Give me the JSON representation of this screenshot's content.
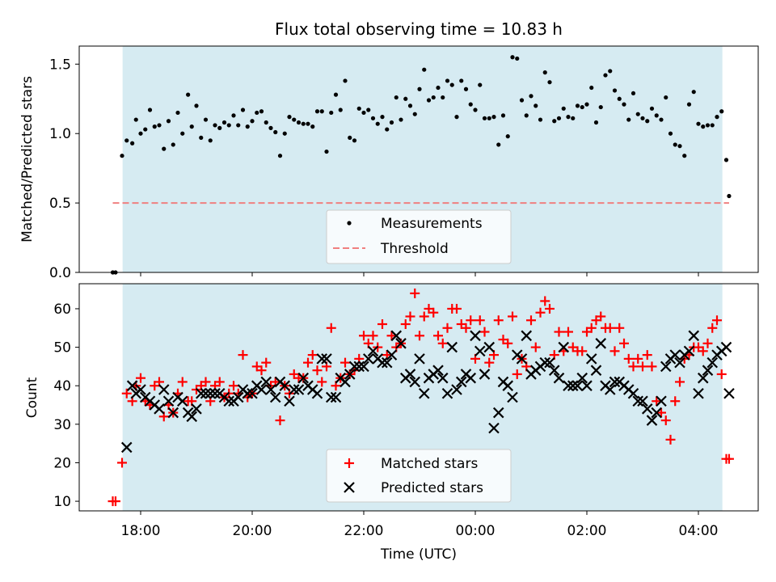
{
  "chart_data": [
    {
      "type": "scatter",
      "title": "Flux total observing time = 10.83 h",
      "xlabel": "",
      "ylabel": "Matched/Predicted stars",
      "ylim": [
        0,
        1.63
      ],
      "y_ticks": [
        "0.0",
        "0.5",
        "1.0",
        "1.5"
      ],
      "threshold": 0.5,
      "legend_position": "lower-center",
      "legend": [
        "Measurements",
        "Threshold"
      ],
      "colors": {
        "measurements": "#000000",
        "threshold": "#f08080",
        "span": "#add8e6"
      },
      "series": [
        {
          "name": "Measurements",
          "x": [
            "17:30",
            "17:33",
            "17:40",
            "17:45",
            "17:51",
            "17:55",
            "18:00",
            "18:05",
            "18:10",
            "18:15",
            "18:20",
            "18:25",
            "18:30",
            "18:35",
            "18:40",
            "18:45",
            "18:51",
            "18:55",
            "19:00",
            "19:05",
            "19:10",
            "19:15",
            "19:20",
            "19:25",
            "19:30",
            "19:35",
            "19:40",
            "19:45",
            "19:50",
            "19:55",
            "20:00",
            "20:05",
            "20:10",
            "20:15",
            "20:20",
            "20:25",
            "20:30",
            "20:35",
            "20:40",
            "20:45",
            "20:50",
            "20:55",
            "21:00",
            "21:05",
            "21:10",
            "21:15",
            "21:20",
            "21:25",
            "21:30",
            "21:35",
            "21:40",
            "21:45",
            "21:50",
            "21:55",
            "22:00",
            "22:05",
            "22:10",
            "22:15",
            "22:20",
            "22:25",
            "22:30",
            "22:35",
            "22:40",
            "22:45",
            "22:50",
            "22:55",
            "23:00",
            "23:05",
            "23:10",
            "23:15",
            "23:20",
            "23:25",
            "23:30",
            "23:35",
            "23:40",
            "23:45",
            "23:50",
            "23:55",
            "00:00",
            "00:05",
            "00:10",
            "00:15",
            "00:20",
            "00:25",
            "00:30",
            "00:35",
            "00:40",
            "00:45",
            "00:50",
            "00:55",
            "01:00",
            "01:05",
            "01:10",
            "01:15",
            "01:20",
            "01:25",
            "01:30",
            "01:35",
            "01:40",
            "01:45",
            "01:50",
            "01:55",
            "02:00",
            "02:05",
            "02:10",
            "02:15",
            "02:20",
            "02:25",
            "02:30",
            "02:35",
            "02:40",
            "02:45",
            "02:50",
            "02:55",
            "03:00",
            "03:05",
            "03:10",
            "03:15",
            "03:20",
            "03:25",
            "03:30",
            "03:35",
            "03:40",
            "03:45",
            "03:50",
            "03:55",
            "04:00",
            "04:05",
            "04:10",
            "04:15",
            "04:20",
            "04:25",
            "04:30",
            "04:33"
          ],
          "y": [
            0.0,
            0.0,
            0.84,
            0.95,
            0.93,
            1.1,
            1.0,
            1.03,
            1.17,
            1.05,
            1.06,
            0.89,
            1.09,
            0.92,
            1.15,
            1.0,
            1.28,
            1.05,
            1.2,
            0.97,
            1.1,
            0.95,
            1.06,
            1.04,
            1.08,
            1.06,
            1.13,
            1.06,
            1.17,
            1.05,
            1.09,
            1.15,
            1.16,
            1.08,
            1.04,
            1.01,
            0.84,
            1.0,
            1.12,
            1.1,
            1.08,
            1.07,
            1.07,
            1.05,
            1.16,
            1.16,
            0.87,
            1.15,
            1.28,
            1.17,
            1.38,
            0.97,
            0.95,
            1.18,
            1.15,
            1.17,
            1.11,
            1.07,
            1.12,
            1.03,
            1.08,
            1.26,
            1.1,
            1.25,
            1.2,
            1.14,
            1.32,
            1.46,
            1.24,
            1.26,
            1.33,
            1.26,
            1.38,
            1.35,
            1.12,
            1.38,
            1.32,
            1.21,
            1.17,
            1.35,
            1.11,
            1.11,
            1.12,
            0.92,
            1.13,
            0.98,
            1.55,
            1.54,
            1.24,
            1.13,
            1.27,
            1.2,
            1.1,
            1.44,
            1.37,
            1.09,
            1.11,
            1.18,
            1.12,
            1.11,
            1.2,
            1.19,
            1.21,
            1.33,
            1.08,
            1.19,
            1.42,
            1.45,
            1.31,
            1.25,
            1.21,
            1.1,
            1.29,
            1.14,
            1.11,
            1.09,
            1.18,
            1.13,
            1.1,
            1.26,
            1.0,
            0.92,
            0.91,
            0.84,
            1.21,
            1.3,
            1.07,
            1.05,
            1.06,
            1.06,
            1.12,
            1.16,
            0.81,
            0.55
          ]
        }
      ]
    },
    {
      "type": "scatter",
      "title": "",
      "xlabel": "Time (UTC)",
      "ylabel": "Count",
      "ylim": [
        7.5,
        66.5
      ],
      "x_ticks": [
        "18:00",
        "20:00",
        "22:00",
        "00:00",
        "02:00",
        "04:00"
      ],
      "y_ticks": [
        "10",
        "20",
        "30",
        "40",
        "50",
        "60"
      ],
      "legend_position": "lower-center",
      "legend": [
        "Matched stars",
        "Predicted stars"
      ],
      "colors": {
        "matched": "#ff0000",
        "predicted": "#000000",
        "span": "#add8e6"
      },
      "series": [
        {
          "name": "Matched stars",
          "x": [
            "17:30",
            "17:33",
            "17:40",
            "17:45",
            "17:51",
            "17:55",
            "18:00",
            "18:05",
            "18:10",
            "18:15",
            "18:20",
            "18:25",
            "18:30",
            "18:35",
            "18:40",
            "18:45",
            "18:51",
            "18:55",
            "19:00",
            "19:05",
            "19:10",
            "19:15",
            "19:20",
            "19:25",
            "19:30",
            "19:35",
            "19:40",
            "19:45",
            "19:50",
            "19:55",
            "20:00",
            "20:05",
            "20:10",
            "20:15",
            "20:20",
            "20:25",
            "20:30",
            "20:35",
            "20:40",
            "20:45",
            "20:50",
            "20:55",
            "21:00",
            "21:05",
            "21:10",
            "21:15",
            "21:20",
            "21:25",
            "21:30",
            "21:35",
            "21:40",
            "21:45",
            "21:50",
            "21:55",
            "22:00",
            "22:05",
            "22:10",
            "22:15",
            "22:20",
            "22:25",
            "22:30",
            "22:35",
            "22:40",
            "22:45",
            "22:50",
            "22:55",
            "23:00",
            "23:05",
            "23:10",
            "23:15",
            "23:20",
            "23:25",
            "23:30",
            "23:35",
            "23:40",
            "23:45",
            "23:50",
            "23:55",
            "00:00",
            "00:05",
            "00:10",
            "00:15",
            "00:20",
            "00:25",
            "00:30",
            "00:35",
            "00:40",
            "00:45",
            "00:50",
            "00:55",
            "01:00",
            "01:05",
            "01:10",
            "01:15",
            "01:20",
            "01:25",
            "01:30",
            "01:35",
            "01:40",
            "01:45",
            "01:50",
            "01:55",
            "02:00",
            "02:05",
            "02:10",
            "02:15",
            "02:20",
            "02:25",
            "02:30",
            "02:35",
            "02:40",
            "02:45",
            "02:50",
            "02:55",
            "03:00",
            "03:05",
            "03:10",
            "03:15",
            "03:20",
            "03:25",
            "03:30",
            "03:35",
            "03:40",
            "03:45",
            "03:50",
            "03:55",
            "04:00",
            "04:05",
            "04:10",
            "04:15",
            "04:20",
            "04:25",
            "04:30",
            "04:33"
          ],
          "y": [
            10,
            10,
            20,
            38,
            36,
            40,
            42,
            36,
            35,
            40,
            41,
            32,
            35,
            33,
            38,
            41,
            36,
            36,
            39,
            40,
            41,
            36,
            40,
            41,
            37,
            38,
            40,
            38,
            48,
            37,
            38,
            45,
            44,
            46,
            40,
            41,
            31,
            40,
            38,
            43,
            42,
            42,
            46,
            48,
            44,
            41,
            45,
            55,
            40,
            42,
            46,
            43,
            44,
            47,
            53,
            51,
            53,
            50,
            56,
            48,
            53,
            50,
            51,
            56,
            58,
            64,
            53,
            58,
            60,
            59,
            53,
            51,
            55,
            60,
            60,
            56,
            55,
            57,
            47,
            57,
            54,
            46,
            48,
            57,
            52,
            51,
            58,
            43,
            47,
            45,
            57,
            50,
            59,
            62,
            60,
            48,
            54,
            49,
            54,
            50,
            49,
            49,
            54,
            55,
            57,
            58,
            55,
            55,
            49,
            55,
            51,
            47,
            45,
            47,
            45,
            48,
            45,
            36,
            33,
            31,
            26,
            36,
            41,
            47,
            48,
            50,
            50,
            49,
            51,
            55,
            57,
            43,
            21,
            21
          ]
        },
        {
          "name": "Predicted stars",
          "x": [
            "17:45",
            "17:51",
            "17:55",
            "18:00",
            "18:05",
            "18:10",
            "18:15",
            "18:20",
            "18:25",
            "18:30",
            "18:35",
            "18:40",
            "18:45",
            "18:51",
            "18:55",
            "19:00",
            "19:05",
            "19:10",
            "19:15",
            "19:20",
            "19:25",
            "19:30",
            "19:35",
            "19:40",
            "19:45",
            "19:50",
            "19:55",
            "20:00",
            "20:05",
            "20:10",
            "20:15",
            "20:20",
            "20:25",
            "20:30",
            "20:35",
            "20:40",
            "20:45",
            "20:50",
            "20:55",
            "21:00",
            "21:05",
            "21:10",
            "21:15",
            "21:20",
            "21:25",
            "21:30",
            "21:35",
            "21:40",
            "21:45",
            "21:50",
            "21:55",
            "22:00",
            "22:05",
            "22:10",
            "22:15",
            "22:20",
            "22:25",
            "22:30",
            "22:35",
            "22:40",
            "22:45",
            "22:50",
            "22:55",
            "23:00",
            "23:05",
            "23:10",
            "23:15",
            "23:20",
            "23:25",
            "23:30",
            "23:35",
            "23:40",
            "23:45",
            "23:50",
            "23:55",
            "00:00",
            "00:05",
            "00:10",
            "00:15",
            "00:20",
            "00:25",
            "00:30",
            "00:35",
            "00:40",
            "00:45",
            "00:50",
            "00:55",
            "01:00",
            "01:05",
            "01:10",
            "01:15",
            "01:20",
            "01:25",
            "01:30",
            "01:35",
            "01:40",
            "01:45",
            "01:50",
            "01:55",
            "02:00",
            "02:05",
            "02:10",
            "02:15",
            "02:20",
            "02:25",
            "02:30",
            "02:35",
            "02:40",
            "02:45",
            "02:50",
            "02:55",
            "03:00",
            "03:05",
            "03:10",
            "03:15",
            "03:20",
            "03:25",
            "03:30",
            "03:35",
            "03:40",
            "03:45",
            "03:50",
            "03:55",
            "04:00",
            "04:05",
            "04:10",
            "04:15",
            "04:20",
            "04:25",
            "04:30",
            "04:33"
          ],
          "y": [
            24,
            40,
            38,
            39,
            37,
            36,
            35,
            34,
            39,
            36,
            33,
            37,
            36,
            33,
            32,
            34,
            38,
            38,
            38,
            38,
            38,
            37,
            36,
            36,
            37,
            39,
            38,
            38,
            40,
            39,
            41,
            39,
            37,
            41,
            40,
            36,
            39,
            39,
            42,
            40,
            39,
            38,
            47,
            47,
            37,
            37,
            42,
            41,
            43,
            45,
            45,
            45,
            47,
            49,
            47,
            46,
            46,
            48,
            53,
            51,
            42,
            43,
            41,
            47,
            38,
            42,
            43,
            44,
            42,
            38,
            50,
            39,
            41,
            43,
            42,
            53,
            49,
            43,
            50,
            29,
            33,
            41,
            40,
            37,
            48,
            47,
            53,
            43,
            44,
            45,
            46,
            46,
            44,
            42,
            50,
            40,
            40,
            40,
            42,
            40,
            47,
            44,
            51,
            40,
            39,
            41,
            41,
            40,
            39,
            38,
            36,
            36,
            34,
            31,
            33,
            36,
            45,
            47,
            48,
            46,
            48,
            49,
            53,
            38,
            42,
            44,
            46,
            48,
            49,
            50,
            38
          ]
        }
      ]
    }
  ]
}
